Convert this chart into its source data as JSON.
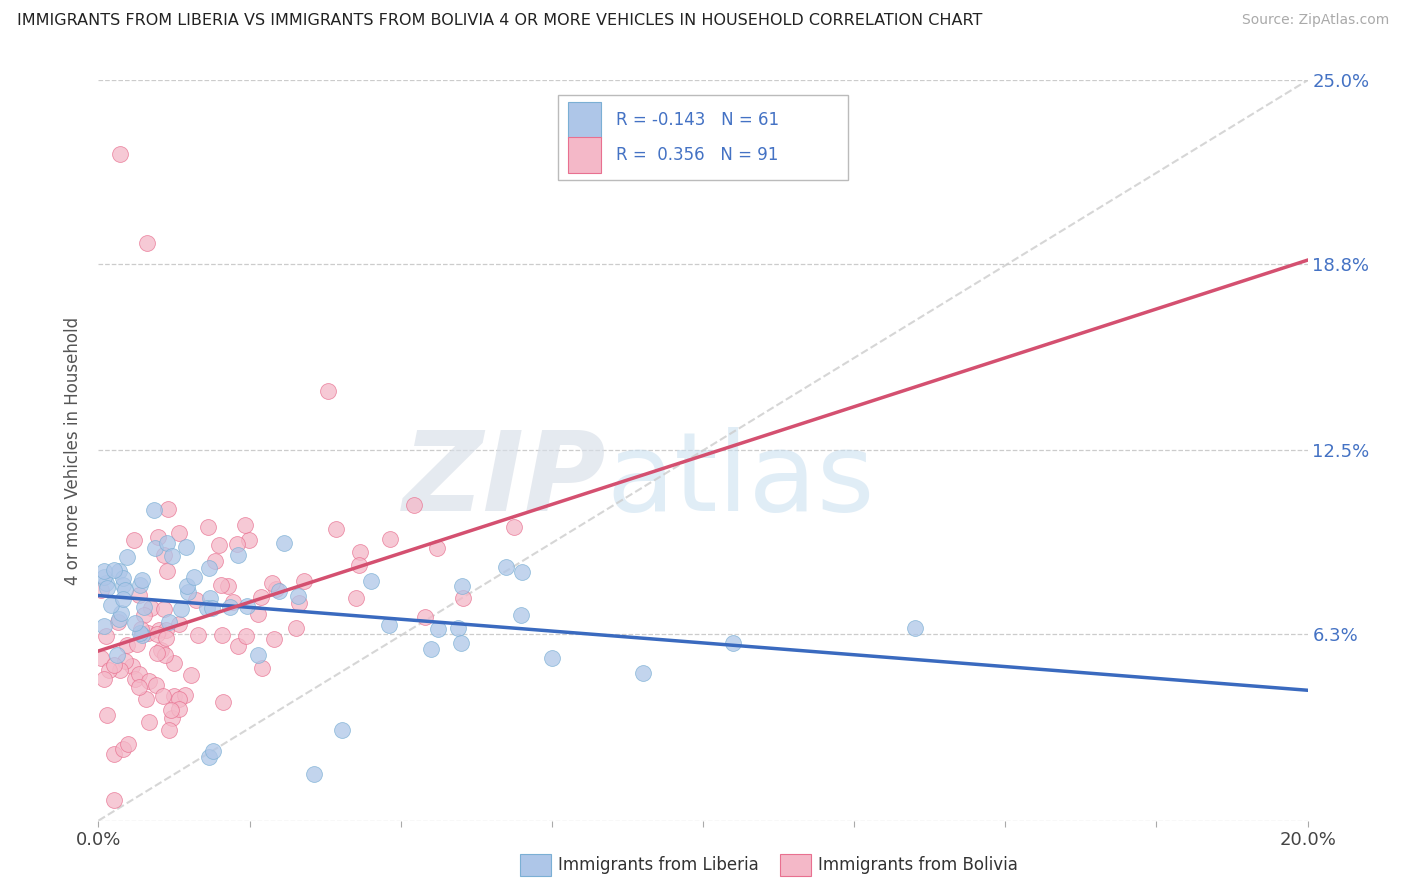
{
  "title": "IMMIGRANTS FROM LIBERIA VS IMMIGRANTS FROM BOLIVIA 4 OR MORE VEHICLES IN HOUSEHOLD CORRELATION CHART",
  "source": "Source: ZipAtlas.com",
  "xlim": [
    0.0,
    20.0
  ],
  "ylim": [
    0.0,
    25.0
  ],
  "liberia_color": "#aec6e8",
  "liberia_color_edge": "#7bafd4",
  "bolivia_color": "#f4b8c8",
  "bolivia_color_edge": "#e87090",
  "trend_liberia_color": "#3a6abf",
  "trend_bolivia_color": "#d45070",
  "liberia_R": -0.143,
  "liberia_N": 61,
  "bolivia_R": 0.356,
  "bolivia_N": 91,
  "legend_label_liberia": "Immigrants from Liberia",
  "legend_label_bolivia": "Immigrants from Bolivia",
  "watermark_zip": "ZIP",
  "watermark_atlas": "atlas",
  "ylabel_tick_labels": [
    "",
    "6.3%",
    "12.5%",
    "18.8%",
    "25.0%"
  ],
  "ylabel_ticks": [
    0.0,
    6.3,
    12.5,
    18.8,
    25.0
  ],
  "tick_label_color": "#4472C4",
  "grid_color": "#cccccc",
  "background_color": "#ffffff"
}
